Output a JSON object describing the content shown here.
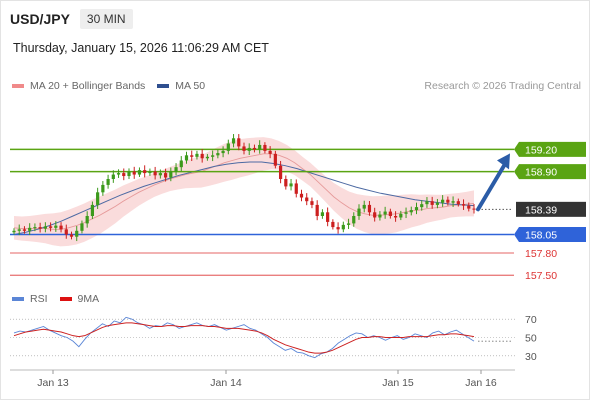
{
  "header": {
    "symbol": "USD/JPY",
    "timeframe": "30 MIN",
    "datetime": "Thursday, January 15, 2026 11:06:29 AM CET",
    "credit": "Research © 2026 Trading Central"
  },
  "legend": {
    "ma20": "MA 20 + Bollinger Bands",
    "ma50": "MA 50"
  },
  "rsi_legend": {
    "rsi": "RSI",
    "ma9": "9MA"
  },
  "colors": {
    "resistance": "#5aa413",
    "pivot": "#2f63d9",
    "support": "#dd3333",
    "current": "#333333",
    "candle_up": "#3c9a1c",
    "candle_down": "#cc1f1f",
    "bollinger": "#f9d6d6",
    "ma20": "#e69a9a",
    "ma50": "#4d6aa3",
    "rsi": "#5b86d6",
    "rsi_ma": "#cc2222",
    "arrow": "#2b5ca7"
  },
  "chart_data": [
    {
      "type": "candlestick",
      "title": "USD/JPY",
      "timeframe": "30 MIN",
      "x_ticks": [
        "Jan 13",
        "Jan 14",
        "Jan 15",
        "Jan 16"
      ],
      "ylim": [
        157.3,
        159.8
      ],
      "levels": [
        {
          "label": "159.20",
          "value": 159.2,
          "kind": "resistance"
        },
        {
          "label": "158.90",
          "value": 158.9,
          "kind": "resistance"
        },
        {
          "label": "158.39",
          "value": 158.39,
          "kind": "current"
        },
        {
          "label": "158.05",
          "value": 158.05,
          "kind": "pivot"
        },
        {
          "label": "157.80",
          "value": 157.8,
          "kind": "support"
        },
        {
          "label": "157.50",
          "value": 157.5,
          "kind": "support"
        }
      ],
      "close": [
        158.1,
        158.12,
        158.1,
        158.14,
        158.15,
        158.13,
        158.16,
        158.14,
        158.17,
        158.12,
        158.05,
        158.02,
        158.1,
        158.2,
        158.3,
        158.45,
        158.62,
        158.72,
        158.8,
        158.86,
        158.88,
        158.84,
        158.9,
        158.86,
        158.92,
        158.88,
        158.9,
        158.85,
        158.88,
        158.82,
        158.9,
        158.96,
        159.05,
        159.12,
        159.1,
        159.14,
        159.08,
        159.1,
        159.12,
        159.15,
        159.18,
        159.28,
        159.35,
        159.24,
        159.18,
        159.22,
        159.2,
        159.26,
        159.18,
        159.14,
        158.98,
        158.8,
        158.7,
        158.74,
        158.6,
        158.55,
        158.5,
        158.45,
        158.3,
        158.35,
        158.22,
        158.15,
        158.12,
        158.18,
        158.2,
        158.3,
        158.4,
        158.45,
        158.35,
        158.28,
        158.32,
        158.36,
        158.3,
        158.28,
        158.33,
        158.35,
        158.38,
        158.42,
        158.46,
        158.5,
        158.45,
        158.48,
        158.52,
        158.48,
        158.5,
        158.46,
        158.44,
        158.4,
        158.39
      ],
      "ma20": [
        158.14,
        158.13,
        158.13,
        158.13,
        158.13,
        158.12,
        158.12,
        158.14,
        158.17,
        158.21,
        158.26,
        158.31,
        158.37,
        158.43,
        158.5,
        158.56,
        158.62,
        158.67,
        158.72,
        158.76,
        158.8,
        158.83,
        158.86,
        158.88,
        158.9,
        158.94,
        158.98,
        159.02,
        159.05,
        159.08,
        159.1,
        159.12,
        159.14,
        159.14,
        159.12,
        159.08,
        159.02,
        158.94,
        158.86,
        158.76,
        158.66,
        158.56,
        158.48,
        158.41,
        158.36,
        158.33,
        158.31,
        158.31,
        158.32,
        158.33,
        158.35,
        158.37,
        158.38,
        158.4,
        158.41,
        158.42,
        158.44,
        158.45,
        158.46,
        158.47
      ],
      "ma50": [
        158.05,
        158.08,
        158.12,
        158.17,
        158.23,
        158.3,
        158.37,
        158.44,
        158.51,
        158.58,
        158.64,
        158.7,
        158.75,
        158.8,
        158.85,
        158.89,
        158.93,
        158.97,
        159.0,
        159.02,
        159.03,
        159.03,
        159.01,
        158.98,
        158.94,
        158.89,
        158.84,
        158.79,
        158.74,
        158.69,
        158.65,
        158.61,
        158.58,
        158.55,
        158.52,
        158.5,
        158.48,
        158.46,
        158.45,
        158.44
      ]
    },
    {
      "type": "line",
      "title": "RSI",
      "y_ticks": [
        "70",
        "50",
        "30"
      ],
      "ylim": [
        20,
        80
      ],
      "series": [
        {
          "name": "RSI",
          "values": [
            55,
            57,
            56,
            58,
            60,
            62,
            58,
            55,
            52,
            50,
            46,
            40,
            48,
            55,
            60,
            65,
            62,
            68,
            66,
            72,
            70,
            66,
            64,
            60,
            63,
            62,
            66,
            64,
            60,
            62,
            64,
            66,
            63,
            62,
            64,
            61,
            58,
            60,
            62,
            64,
            60,
            58,
            54,
            50,
            44,
            40,
            36,
            38,
            34,
            33,
            30,
            28,
            32,
            34,
            38,
            44,
            48,
            52,
            55,
            54,
            50,
            52,
            50,
            47,
            50,
            52,
            48,
            50,
            54,
            52,
            50,
            55,
            57,
            53,
            56,
            58,
            54,
            50,
            46
          ]
        },
        {
          "name": "9MA",
          "values": [
            52,
            54,
            56,
            57,
            58,
            59,
            58,
            57,
            56,
            54,
            52,
            51,
            52,
            55,
            58,
            61,
            63,
            64,
            65,
            66,
            66,
            65,
            64,
            63,
            62,
            62,
            63,
            63,
            62,
            62,
            63,
            63,
            63,
            62,
            62,
            61,
            60,
            60,
            60,
            59,
            58,
            57,
            55,
            52,
            48,
            45,
            42,
            40,
            38,
            36,
            34,
            33,
            33,
            34,
            36,
            39,
            42,
            45,
            48,
            50,
            50,
            51,
            51,
            50,
            50,
            50,
            50,
            51,
            51,
            51,
            51,
            52,
            53,
            53,
            54,
            54,
            53,
            52,
            51
          ]
        }
      ]
    }
  ]
}
